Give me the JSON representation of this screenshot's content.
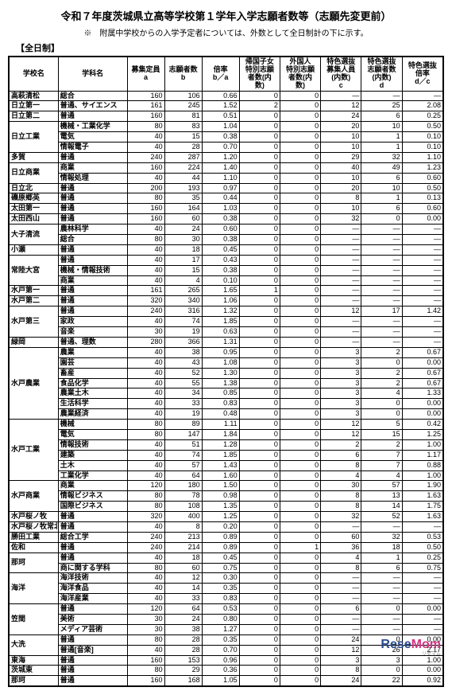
{
  "title": "令和７年度茨城県立高等学校第１学年入学志願者数等（志願先変更前）",
  "subtitle": "※　附属中学校からの入学予定者については、外数として全日制計の下に示す。",
  "section": "【全日制】",
  "logo": {
    "rese": "Rese",
    "mom": "Mom",
    "sub": "リセマム"
  },
  "columns": [
    {
      "key": "school",
      "label": "学校名",
      "width": 54
    },
    {
      "key": "dept",
      "label": "学科名",
      "width": 78
    },
    {
      "key": "a",
      "label": "募集定員\na",
      "width": 40
    },
    {
      "key": "b",
      "label": "志願者数\nb",
      "width": 40
    },
    {
      "key": "ratio",
      "label": "倍率\nb／a",
      "width": 40
    },
    {
      "key": "ret",
      "label": "帰国子女\n特別志願\n者数(内\n数)",
      "width": 44
    },
    {
      "key": "for",
      "label": "外国人\n特別志願\n者数(内\n数)",
      "width": 44
    },
    {
      "key": "c",
      "label": "特色選抜\n募集人員\n(内数)\nc",
      "width": 44
    },
    {
      "key": "d",
      "label": "特色選抜\n志願者数\n(内数)\nd",
      "width": 44
    },
    {
      "key": "dc",
      "label": "特色選抜\n倍率\nd／c",
      "width": 44
    }
  ],
  "schools": [
    {
      "name": "高萩清松",
      "rows": [
        {
          "dept": "総合",
          "a": 160,
          "b": 106,
          "ratio": "0.66",
          "ret": 0,
          "for": 0,
          "c": "—",
          "d": "—",
          "dc": "—"
        }
      ]
    },
    {
      "name": "日立第一",
      "rows": [
        {
          "dept": "普通、サイエンス",
          "a": 161,
          "b": 245,
          "ratio": "1.52",
          "ret": 2,
          "for": 0,
          "c": 12,
          "d": 25,
          "dc": "2.08"
        }
      ]
    },
    {
      "name": "日立第二",
      "rows": [
        {
          "dept": "普通",
          "a": 160,
          "b": 81,
          "ratio": "0.51",
          "ret": 0,
          "for": 0,
          "c": 24,
          "d": 6,
          "dc": "0.25"
        }
      ]
    },
    {
      "name": "日立工業",
      "rows": [
        {
          "dept": "機械・工業化学",
          "a": 80,
          "b": 83,
          "ratio": "1.04",
          "ret": 0,
          "for": 0,
          "c": 20,
          "d": 10,
          "dc": "0.50"
        },
        {
          "dept": "電気",
          "a": 40,
          "b": 15,
          "ratio": "0.38",
          "ret": 0,
          "for": 0,
          "c": 10,
          "d": 1,
          "dc": "0.10"
        },
        {
          "dept": "情報電子",
          "a": 40,
          "b": 28,
          "ratio": "0.70",
          "ret": 0,
          "for": 0,
          "c": 10,
          "d": 1,
          "dc": "0.10"
        }
      ]
    },
    {
      "name": "多賀",
      "rows": [
        {
          "dept": "普通",
          "a": 240,
          "b": 287,
          "ratio": "1.20",
          "ret": 0,
          "for": 0,
          "c": 29,
          "d": 32,
          "dc": "1.10"
        }
      ]
    },
    {
      "name": "日立商業",
      "rows": [
        {
          "dept": "商業",
          "a": 160,
          "b": 224,
          "ratio": "1.40",
          "ret": 0,
          "for": 0,
          "c": 40,
          "d": 49,
          "dc": "1.23"
        },
        {
          "dept": "情報処理",
          "a": 40,
          "b": 44,
          "ratio": "1.10",
          "ret": 0,
          "for": 0,
          "c": 10,
          "d": 6,
          "dc": "0.60"
        }
      ]
    },
    {
      "name": "日立北",
      "rows": [
        {
          "dept": "普通",
          "a": 200,
          "b": 193,
          "ratio": "0.97",
          "ret": 0,
          "for": 0,
          "c": 20,
          "d": 10,
          "dc": "0.50"
        }
      ]
    },
    {
      "name": "磯原郷英",
      "rows": [
        {
          "dept": "普通",
          "a": 80,
          "b": 35,
          "ratio": "0.44",
          "ret": 0,
          "for": 0,
          "c": 8,
          "d": 1,
          "dc": "0.13"
        }
      ]
    },
    {
      "name": "太田第一",
      "rows": [
        {
          "dept": "普通",
          "a": 160,
          "b": 164,
          "ratio": "1.03",
          "ret": 0,
          "for": 0,
          "c": 10,
          "d": 6,
          "dc": "0.60"
        }
      ]
    },
    {
      "name": "太田西山",
      "rows": [
        {
          "dept": "普通",
          "a": 160,
          "b": 60,
          "ratio": "0.38",
          "ret": 0,
          "for": 0,
          "c": 32,
          "d": 0,
          "dc": "0.00"
        }
      ]
    },
    {
      "name": "大子清流",
      "rows": [
        {
          "dept": "農林科学",
          "a": 40,
          "b": 24,
          "ratio": "0.60",
          "ret": 0,
          "for": 0,
          "c": "—",
          "d": "—",
          "dc": "—"
        },
        {
          "dept": "総合",
          "a": 80,
          "b": 30,
          "ratio": "0.38",
          "ret": 0,
          "for": 0,
          "c": "—",
          "d": "—",
          "dc": "—"
        }
      ]
    },
    {
      "name": "小瀬",
      "rows": [
        {
          "dept": "普通",
          "a": 40,
          "b": 18,
          "ratio": "0.45",
          "ret": 0,
          "for": 0,
          "c": "—",
          "d": "—",
          "dc": "—"
        }
      ]
    },
    {
      "name": "常陸大宮",
      "rows": [
        {
          "dept": "普通",
          "a": 40,
          "b": 17,
          "ratio": "0.43",
          "ret": 0,
          "for": 0,
          "c": "—",
          "d": "—",
          "dc": "—"
        },
        {
          "dept": "機械・情報技術",
          "a": 40,
          "b": 15,
          "ratio": "0.38",
          "ret": 0,
          "for": 0,
          "c": "—",
          "d": "—",
          "dc": "—"
        },
        {
          "dept": "商業",
          "a": 40,
          "b": 4,
          "ratio": "0.10",
          "ret": 0,
          "for": 0,
          "c": "—",
          "d": "—",
          "dc": "—"
        }
      ]
    },
    {
      "name": "水戸第一",
      "rows": [
        {
          "dept": "普通",
          "a": 161,
          "b": 265,
          "ratio": "1.65",
          "ret": 1,
          "for": 0,
          "c": "—",
          "d": "—",
          "dc": "—"
        }
      ]
    },
    {
      "name": "水戸第二",
      "rows": [
        {
          "dept": "普通",
          "a": 320,
          "b": 340,
          "ratio": "1.06",
          "ret": 0,
          "for": 0,
          "c": "—",
          "d": "—",
          "dc": "—"
        }
      ]
    },
    {
      "name": "水戸第三",
      "rows": [
        {
          "dept": "普通",
          "a": 240,
          "b": 316,
          "ratio": "1.32",
          "ret": 0,
          "for": 0,
          "c": 12,
          "d": 17,
          "dc": "1.42"
        },
        {
          "dept": "家政",
          "a": 40,
          "b": 74,
          "ratio": "1.85",
          "ret": 0,
          "for": 0,
          "c": "—",
          "d": "—",
          "dc": "—"
        },
        {
          "dept": "音楽",
          "a": 30,
          "b": 19,
          "ratio": "0.63",
          "ret": 0,
          "for": 0,
          "c": "—",
          "d": "—",
          "dc": "—"
        }
      ]
    },
    {
      "name": "緑岡",
      "rows": [
        {
          "dept": "普通、理数",
          "a": 280,
          "b": 366,
          "ratio": "1.31",
          "ret": 0,
          "for": 0,
          "c": "—",
          "d": "—",
          "dc": "—"
        }
      ]
    },
    {
      "name": "水戸農業",
      "rows": [
        {
          "dept": "農業",
          "a": 40,
          "b": 38,
          "ratio": "0.95",
          "ret": 0,
          "for": 0,
          "c": 3,
          "d": 2,
          "dc": "0.67"
        },
        {
          "dept": "園芸",
          "a": 40,
          "b": 43,
          "ratio": "1.08",
          "ret": 0,
          "for": 0,
          "c": 3,
          "d": 0,
          "dc": "0.00"
        },
        {
          "dept": "畜産",
          "a": 40,
          "b": 52,
          "ratio": "1.30",
          "ret": 0,
          "for": 0,
          "c": 3,
          "d": 2,
          "dc": "0.67"
        },
        {
          "dept": "食品化学",
          "a": 40,
          "b": 55,
          "ratio": "1.38",
          "ret": 0,
          "for": 0,
          "c": 3,
          "d": 2,
          "dc": "0.67"
        },
        {
          "dept": "農業土木",
          "a": 40,
          "b": 34,
          "ratio": "0.85",
          "ret": 0,
          "for": 0,
          "c": 3,
          "d": 4,
          "dc": "1.33"
        },
        {
          "dept": "生活科学",
          "a": 40,
          "b": 33,
          "ratio": "0.83",
          "ret": 0,
          "for": 0,
          "c": 3,
          "d": 0,
          "dc": "0.00"
        },
        {
          "dept": "農業経済",
          "a": 40,
          "b": 19,
          "ratio": "0.48",
          "ret": 0,
          "for": 0,
          "c": 3,
          "d": 0,
          "dc": "0.00"
        }
      ]
    },
    {
      "name": "水戸工業",
      "rows": [
        {
          "dept": "機械",
          "a": 80,
          "b": 89,
          "ratio": "1.11",
          "ret": 0,
          "for": 0,
          "c": 12,
          "d": 5,
          "dc": "0.42"
        },
        {
          "dept": "電気",
          "a": 80,
          "b": 147,
          "ratio": "1.84",
          "ret": 0,
          "for": 0,
          "c": 12,
          "d": 15,
          "dc": "1.25"
        },
        {
          "dept": "情報技術",
          "a": 40,
          "b": 51,
          "ratio": "1.28",
          "ret": 0,
          "for": 0,
          "c": 2,
          "d": 2,
          "dc": "1.00"
        },
        {
          "dept": "建築",
          "a": 40,
          "b": 74,
          "ratio": "1.85",
          "ret": 0,
          "for": 0,
          "c": 6,
          "d": 7,
          "dc": "1.17"
        },
        {
          "dept": "土木",
          "a": 40,
          "b": 57,
          "ratio": "1.43",
          "ret": 0,
          "for": 0,
          "c": 8,
          "d": 7,
          "dc": "0.88"
        },
        {
          "dept": "工業化学",
          "a": 40,
          "b": 64,
          "ratio": "1.60",
          "ret": 0,
          "for": 0,
          "c": 4,
          "d": 4,
          "dc": "1.00"
        }
      ]
    },
    {
      "name": "水戸商業",
      "rows": [
        {
          "dept": "商業",
          "a": 120,
          "b": 180,
          "ratio": "1.50",
          "ret": 0,
          "for": 0,
          "c": 30,
          "d": 57,
          "dc": "1.90"
        },
        {
          "dept": "情報ビジネス",
          "a": 80,
          "b": 78,
          "ratio": "0.98",
          "ret": 0,
          "for": 0,
          "c": 8,
          "d": 13,
          "dc": "1.63"
        },
        {
          "dept": "国際ビジネス",
          "a": 80,
          "b": 108,
          "ratio": "1.35",
          "ret": 0,
          "for": 0,
          "c": 8,
          "d": 14,
          "dc": "1.75"
        }
      ]
    },
    {
      "name": "水戸桜ノ牧",
      "rows": [
        {
          "dept": "普通",
          "a": 320,
          "b": 400,
          "ratio": "1.25",
          "ret": 0,
          "for": 0,
          "c": 32,
          "d": 52,
          "dc": "1.63"
        }
      ]
    },
    {
      "name": "水戸桜ノ牧常北校",
      "rows": [
        {
          "dept": "普通",
          "a": 40,
          "b": 8,
          "ratio": "0.20",
          "ret": 0,
          "for": 0,
          "c": "—",
          "d": "—",
          "dc": "—"
        }
      ]
    },
    {
      "name": "勝田工業",
      "rows": [
        {
          "dept": "総合工学",
          "a": 240,
          "b": 213,
          "ratio": "0.89",
          "ret": 0,
          "for": 0,
          "c": 60,
          "d": 32,
          "dc": "0.53"
        }
      ]
    },
    {
      "name": "佐和",
      "rows": [
        {
          "dept": "普通",
          "a": 240,
          "b": 214,
          "ratio": "0.89",
          "ret": 0,
          "for": 1,
          "c": 36,
          "d": 18,
          "dc": "0.50"
        }
      ]
    },
    {
      "name": "那珂",
      "rows": [
        {
          "dept": "普通",
          "a": 40,
          "b": 18,
          "ratio": "0.45",
          "ret": 0,
          "for": 0,
          "c": 4,
          "d": 1,
          "dc": "0.25"
        },
        {
          "dept": "商に関する学科",
          "a": 80,
          "b": 60,
          "ratio": "0.75",
          "ret": 0,
          "for": 0,
          "c": 8,
          "d": 6,
          "dc": "0.75"
        }
      ]
    },
    {
      "name": "海洋",
      "rows": [
        {
          "dept": "海洋技術",
          "a": 40,
          "b": 12,
          "ratio": "0.30",
          "ret": 0,
          "for": 0,
          "c": "—",
          "d": "—",
          "dc": "—"
        },
        {
          "dept": "海洋食品",
          "a": 40,
          "b": 14,
          "ratio": "0.35",
          "ret": 0,
          "for": 0,
          "c": "—",
          "d": "—",
          "dc": "—"
        },
        {
          "dept": "海洋産業",
          "a": 40,
          "b": 33,
          "ratio": "0.83",
          "ret": 0,
          "for": 0,
          "c": "—",
          "d": "—",
          "dc": "—"
        }
      ]
    },
    {
      "name": "笠間",
      "rows": [
        {
          "dept": "普通",
          "a": 120,
          "b": 64,
          "ratio": "0.53",
          "ret": 0,
          "for": 0,
          "c": 6,
          "d": 0,
          "dc": "0.00"
        },
        {
          "dept": "美術",
          "a": 30,
          "b": 24,
          "ratio": "0.80",
          "ret": 0,
          "for": 0,
          "c": "—",
          "d": "—",
          "dc": "—"
        },
        {
          "dept": "メディア芸術",
          "a": 30,
          "b": 38,
          "ratio": "1.27",
          "ret": 0,
          "for": 0,
          "c": "—",
          "d": "—",
          "dc": "—"
        }
      ]
    },
    {
      "name": "大洗",
      "rows": [
        {
          "dept": "普通",
          "a": 80,
          "b": 28,
          "ratio": "0.35",
          "ret": 0,
          "for": 0,
          "c": 24,
          "d": 0,
          "dc": "0.00"
        },
        {
          "dept": "普通[音楽]",
          "a": 40,
          "b": 28,
          "ratio": "0.70",
          "ret": 0,
          "for": 0,
          "c": 12,
          "d": 26,
          "dc": "2.17"
        }
      ]
    },
    {
      "name": "東海",
      "rows": [
        {
          "dept": "普通",
          "a": 160,
          "b": 153,
          "ratio": "0.96",
          "ret": 0,
          "for": 0,
          "c": 3,
          "d": 3,
          "dc": "1.00"
        }
      ]
    },
    {
      "name": "茨城東",
      "rows": [
        {
          "dept": "普通",
          "a": 80,
          "b": 29,
          "ratio": "0.36",
          "ret": 0,
          "for": 0,
          "c": 8,
          "d": 0,
          "dc": "0.00"
        }
      ]
    },
    {
      "name": "那珂",
      "rows": [
        {
          "dept": "普通",
          "a": 160,
          "b": 168,
          "ratio": "1.05",
          "ret": 0,
          "for": 0,
          "c": 24,
          "d": 22,
          "dc": "0.92"
        }
      ]
    }
  ]
}
